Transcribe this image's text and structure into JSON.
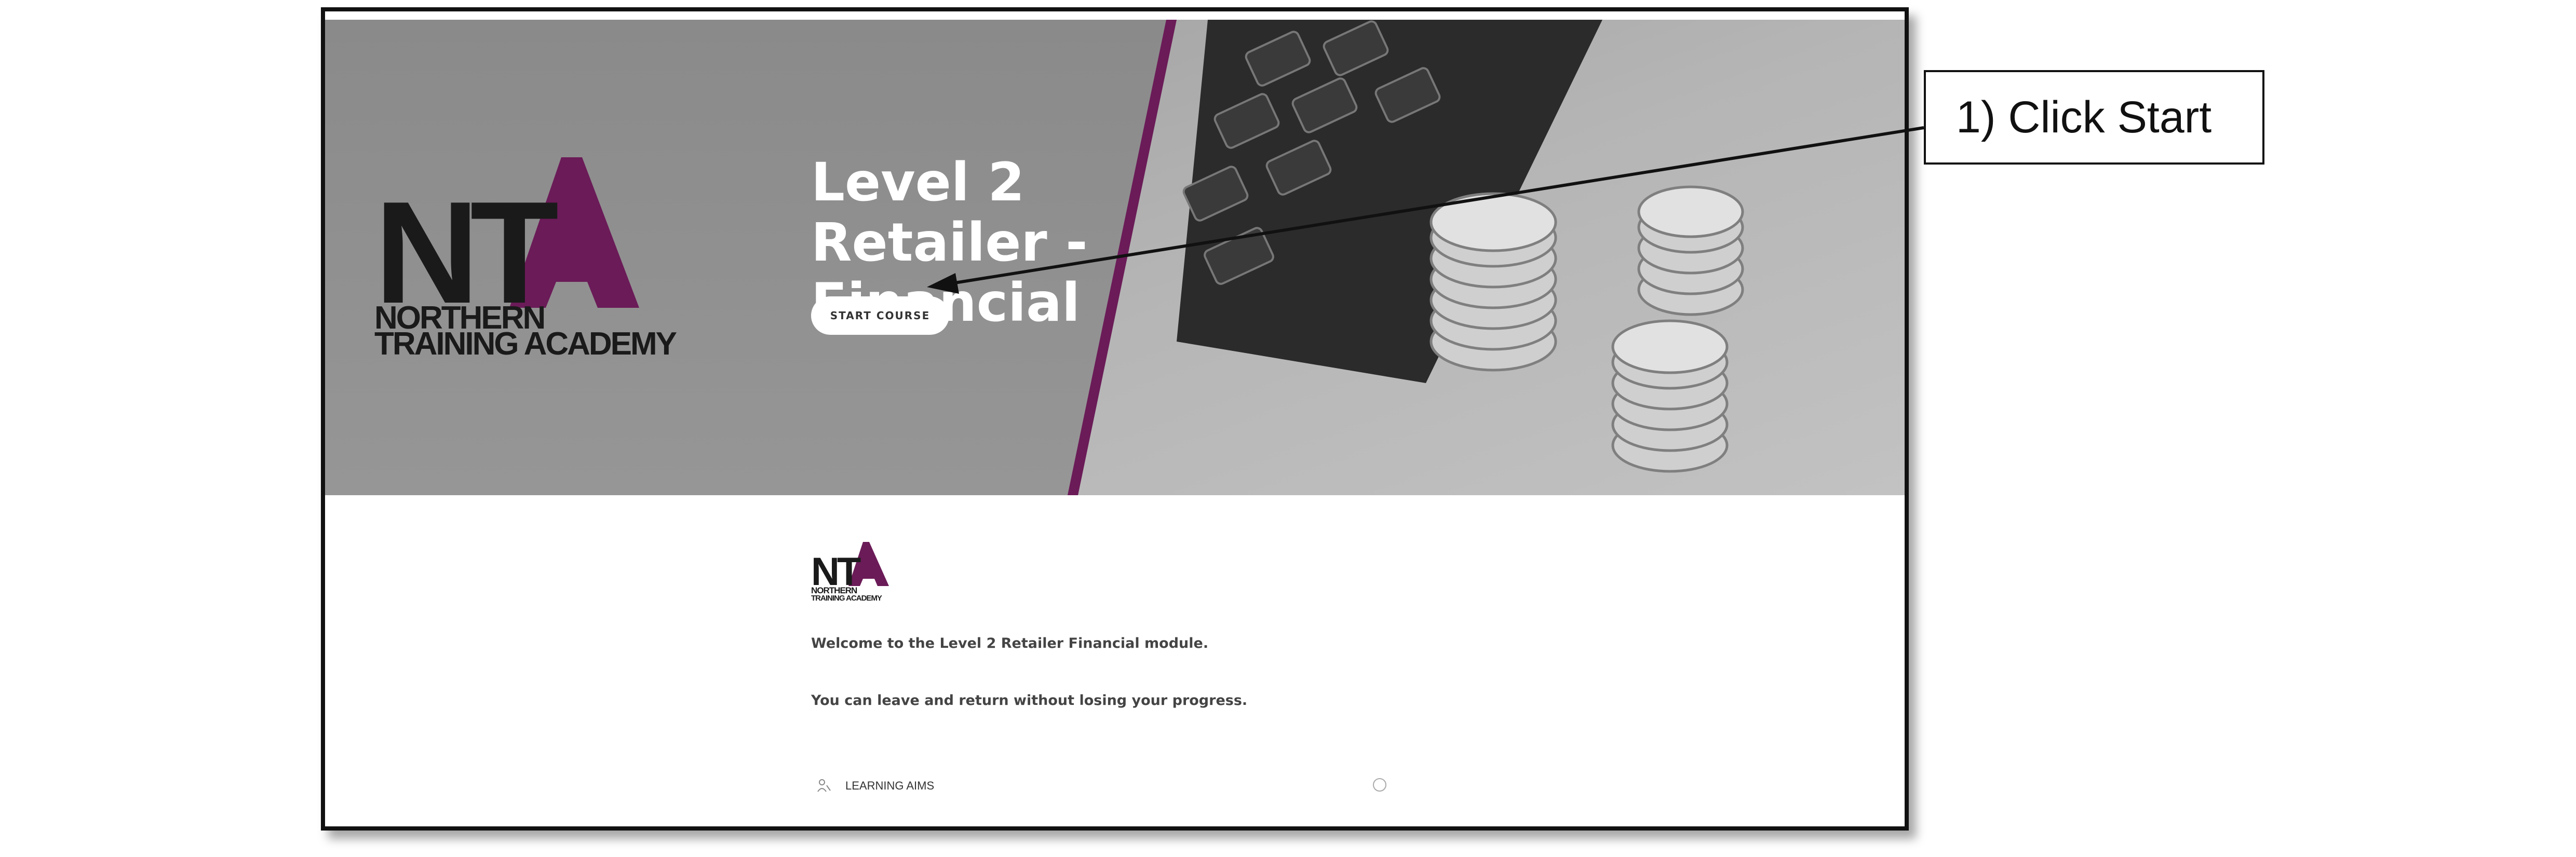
{
  "hero": {
    "title_line1": "Level 2 Retailer -",
    "title_line2": "Financial",
    "start_button_label": "START COURSE"
  },
  "brand": {
    "logo_letters_dark": "NT",
    "logo_letter_accent": "A",
    "logo_line1": "NORTHERN",
    "logo_line2": "TRAINING ACADEMY",
    "accent_color": "#6b1b58"
  },
  "content": {
    "welcome_text": "Welcome to the Level 2 Retailer Financial module.",
    "leave_text": "You can leave and return without losing your progress.",
    "lesson_label": "LEARNING AIMS",
    "lesson_icon": "person-icon",
    "lesson_status_icon": "circle-icon"
  },
  "annotation": {
    "callout_text": "1) Click Start"
  }
}
